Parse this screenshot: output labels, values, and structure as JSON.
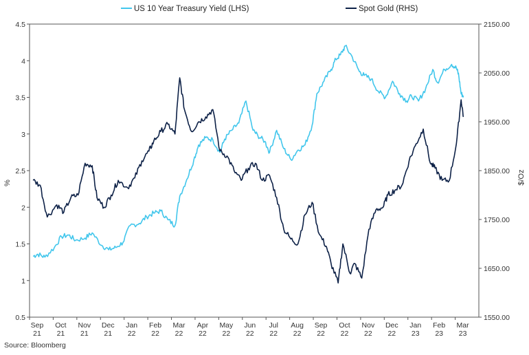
{
  "chart_data": {
    "type": "line",
    "title": "",
    "source": "Source: Bloomberg",
    "x_labels": [
      [
        "Sep",
        "21"
      ],
      [
        "Oct",
        "21"
      ],
      [
        "Nov",
        "21"
      ],
      [
        "Dec",
        "21"
      ],
      [
        "Jan",
        "22"
      ],
      [
        "Feb",
        "22"
      ],
      [
        "Mar",
        "22"
      ],
      [
        "Apr",
        "22"
      ],
      [
        "May",
        "22"
      ],
      [
        "Jun",
        "22"
      ],
      [
        "Jul",
        "22"
      ],
      [
        "Aug",
        "22"
      ],
      [
        "Sep",
        "22"
      ],
      [
        "Oct",
        "22"
      ],
      [
        "Nov",
        "22"
      ],
      [
        "Dec",
        "22"
      ],
      [
        "Jan",
        "23"
      ],
      [
        "Feb",
        "23"
      ],
      [
        "Mar",
        "23"
      ]
    ],
    "y_left": {
      "label": "%",
      "ylim": [
        0.5,
        4.5
      ],
      "ticks": [
        "0.5",
        "1",
        "1.5",
        "2",
        "2.5",
        "3",
        "3.5",
        "4",
        "4.5"
      ]
    },
    "y_right": {
      "label": "$/Oz",
      "ylim": [
        1550,
        2150
      ],
      "ticks": [
        "1550.00",
        "1650.00",
        "1750.00",
        "1850.00",
        "1950.00",
        "2050.00",
        "2150.00"
      ]
    },
    "legend": {
      "placement": "top"
    },
    "series": [
      {
        "name": "US 10 Year Treasury Yield (LHS)",
        "axis": "left",
        "color": "#41c6ec",
        "x": [
          0.0,
          0.2,
          0.5,
          0.9,
          1.2,
          1.5,
          1.8,
          2.2,
          2.5,
          2.9,
          3.2,
          3.5,
          3.8,
          4.1,
          4.5,
          4.8,
          5.1,
          5.4,
          5.7,
          6.0,
          6.2,
          6.5,
          6.8,
          7.0,
          7.3,
          7.6,
          7.9,
          8.1,
          8.4,
          8.7,
          9.0,
          9.3,
          9.5,
          9.8,
          10.0,
          10.3,
          10.6,
          10.9,
          11.2,
          11.5,
          11.8,
          12.0,
          12.3,
          12.6,
          12.8,
          13.0,
          13.2,
          13.5,
          13.8,
          14.0,
          14.3,
          14.6,
          14.9,
          15.2,
          15.5,
          15.8,
          16.0,
          16.3,
          16.6,
          16.9,
          17.1,
          17.4,
          17.7,
          17.9,
          18.0,
          18.1,
          18.2
        ],
        "values": [
          1.33,
          1.36,
          1.32,
          1.45,
          1.6,
          1.62,
          1.55,
          1.58,
          1.65,
          1.48,
          1.42,
          1.45,
          1.52,
          1.75,
          1.78,
          1.87,
          1.92,
          1.95,
          1.83,
          1.75,
          2.15,
          2.38,
          2.65,
          2.85,
          2.95,
          2.92,
          2.75,
          2.93,
          3.05,
          3.15,
          3.45,
          3.05,
          2.98,
          2.9,
          2.75,
          3.05,
          2.8,
          2.65,
          2.78,
          2.85,
          3.12,
          3.55,
          3.72,
          3.88,
          4.02,
          4.08,
          4.2,
          4.05,
          3.85,
          3.8,
          3.75,
          3.58,
          3.5,
          3.72,
          3.55,
          3.45,
          3.52,
          3.45,
          3.62,
          3.88,
          3.7,
          3.88,
          3.95,
          3.9,
          3.8,
          3.55,
          3.52
        ]
      },
      {
        "name": "Spot Gold (RHS)",
        "axis": "right",
        "color": "#0c2046",
        "x": [
          0.0,
          0.3,
          0.6,
          1.0,
          1.3,
          1.6,
          1.9,
          2.2,
          2.5,
          2.7,
          3.0,
          3.3,
          3.6,
          4.0,
          4.3,
          4.6,
          4.9,
          5.1,
          5.4,
          5.7,
          6.0,
          6.2,
          6.4,
          6.7,
          7.0,
          7.3,
          7.6,
          7.9,
          8.2,
          8.5,
          8.8,
          9.1,
          9.4,
          9.7,
          10.0,
          10.3,
          10.6,
          10.9,
          11.2,
          11.5,
          11.8,
          12.1,
          12.4,
          12.6,
          12.9,
          13.1,
          13.4,
          13.6,
          13.9,
          14.2,
          14.5,
          14.8,
          15.0,
          15.3,
          15.6,
          15.9,
          16.2,
          16.5,
          16.8,
          17.0,
          17.3,
          17.6,
          17.9,
          18.1,
          18.2
        ],
        "values": [
          1830,
          1820,
          1755,
          1780,
          1765,
          1795,
          1800,
          1865,
          1860,
          1795,
          1775,
          1800,
          1830,
          1815,
          1835,
          1870,
          1890,
          1910,
          1930,
          1945,
          1925,
          2040,
          1975,
          1930,
          1950,
          1960,
          1975,
          1890,
          1880,
          1850,
          1830,
          1855,
          1865,
          1830,
          1840,
          1795,
          1730,
          1710,
          1700,
          1760,
          1785,
          1720,
          1695,
          1660,
          1620,
          1700,
          1640,
          1660,
          1630,
          1730,
          1770,
          1775,
          1800,
          1810,
          1820,
          1870,
          1905,
          1935,
          1865,
          1855,
          1830,
          1830,
          1905,
          1995,
          1960
        ]
      }
    ]
  }
}
